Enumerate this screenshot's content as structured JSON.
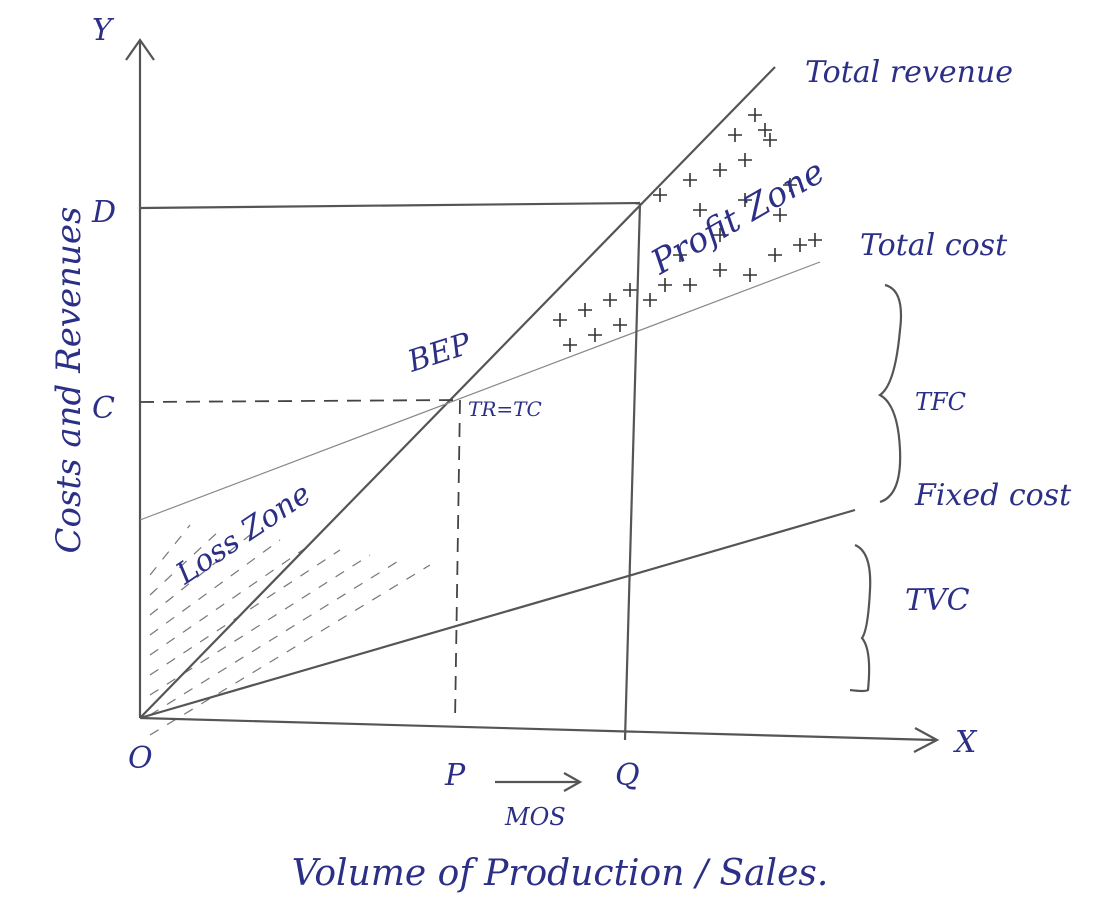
{
  "axes": {
    "y": "Y",
    "x": "X",
    "origin": "O"
  },
  "points": {
    "d": "D",
    "c": "C",
    "p": "P",
    "q": "Q",
    "mos": "MOS"
  },
  "lines": {
    "total_revenue": "Total revenue",
    "total_cost": "Total cost",
    "fixed_cost": "Fixed cost"
  },
  "braces": {
    "tfc": "TFC",
    "tvc": "TVC"
  },
  "bep": {
    "label": "BEP",
    "condition": "TR=TC"
  },
  "zones": {
    "loss": "Loss Zone",
    "profit": "Profit Zone"
  },
  "axis_titles": {
    "y": "Costs and Revenues",
    "x": "Volume of Production / Sales."
  }
}
